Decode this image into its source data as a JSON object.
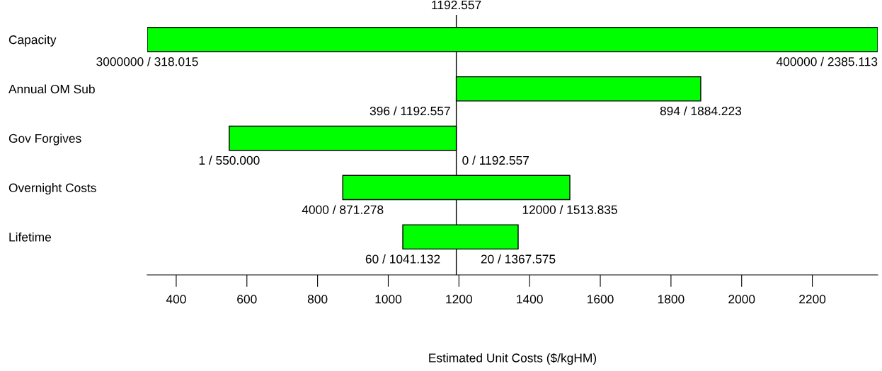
{
  "chart_data": {
    "type": "bar",
    "orientation": "horizontal",
    "categories": [
      "Capacity",
      "Annual OM Sub",
      "Gov Forgives",
      "Overnight Costs",
      "Lifetime"
    ],
    "base": [
      318.015,
      1192.557,
      550.0,
      871.278,
      1041.132
    ],
    "values": [
      2067.098,
      691.666,
      642.557,
      642.557,
      326.443
    ],
    "color": "#00ff00",
    "xlabel": "Estimated Unit Costs ($/kgHM)",
    "xlim": [
      318.015,
      2385.113
    ],
    "xticks": [
      400,
      600,
      800,
      1000,
      1200,
      1400,
      1600,
      1800,
      2000,
      2200
    ],
    "ref_lines": [
      {
        "axis": "x",
        "value": 1192.557,
        "label": "1192.557",
        "color": "#000000"
      }
    ],
    "annotations": [
      {
        "text": "3000000 / 318.015",
        "x": 318.015,
        "y": "Capacity"
      },
      {
        "text": "400000 / 2385.113",
        "x": 2385.113,
        "y": "Capacity"
      },
      {
        "text": "396 / 1192.557",
        "x": 1192.557,
        "y": "Annual OM Sub"
      },
      {
        "text": "894 / 1884.223",
        "x": 1884.223,
        "y": "Annual OM Sub"
      },
      {
        "text": "1 / 550.000",
        "x": 550.0,
        "y": "Gov Forgives"
      },
      {
        "text": "0 / 1192.557",
        "x": 1192.557,
        "y": "Gov Forgives"
      },
      {
        "text": "4000 / 871.278",
        "x": 871.278,
        "y": "Overnight Costs"
      },
      {
        "text": "12000 / 1513.835",
        "x": 1513.835,
        "y": "Overnight Costs"
      },
      {
        "text": "60 / 1041.132",
        "x": 1041.132,
        "y": "Lifetime"
      },
      {
        "text": "20 / 1367.575",
        "x": 1367.575,
        "y": "Lifetime"
      }
    ],
    "grid": false
  }
}
